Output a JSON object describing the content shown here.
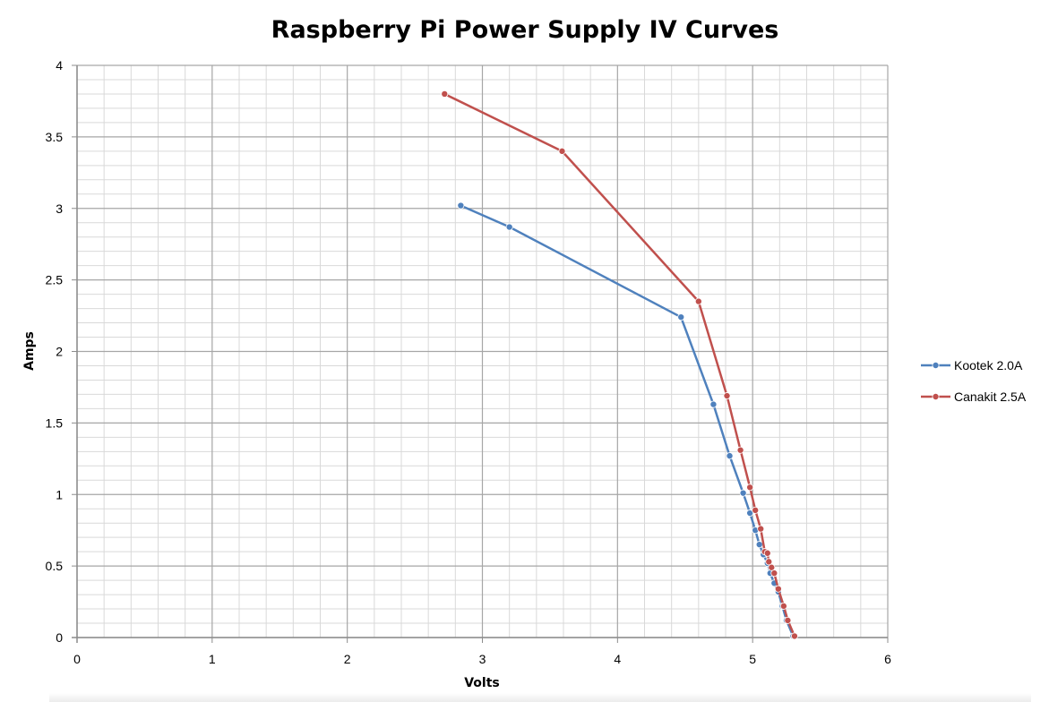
{
  "chart_data": {
    "type": "line",
    "title": "Raspberry Pi Power Supply IV Curves",
    "xlabel": "Volts",
    "ylabel": "Amps",
    "xlim": [
      0,
      6
    ],
    "ylim": [
      0,
      4
    ],
    "x_ticks": [
      "0",
      "1",
      "2",
      "3",
      "4",
      "5",
      "6"
    ],
    "y_ticks": [
      "0",
      "0.5",
      "1",
      "1.5",
      "2",
      "2.5",
      "3",
      "3.5",
      "4"
    ],
    "grid": true,
    "legend_position": "right",
    "series": [
      {
        "name": "Kootek 2.0A",
        "color": "#4f81bd",
        "points": [
          [
            2.84,
            3.02
          ],
          [
            3.2,
            2.87
          ],
          [
            4.47,
            2.24
          ],
          [
            4.71,
            1.63
          ],
          [
            4.83,
            1.27
          ],
          [
            4.93,
            1.01
          ],
          [
            4.98,
            0.87
          ],
          [
            5.02,
            0.75
          ],
          [
            5.05,
            0.65
          ],
          [
            5.08,
            0.58
          ],
          [
            5.11,
            0.52
          ],
          [
            5.13,
            0.45
          ],
          [
            5.16,
            0.38
          ],
          [
            5.19,
            0.32
          ],
          [
            5.22,
            0.22
          ],
          [
            5.25,
            0.12
          ],
          [
            5.3,
            0.01
          ]
        ]
      },
      {
        "name": "Canakit 2.5A",
        "color": "#c0504d",
        "points": [
          [
            2.72,
            3.8
          ],
          [
            3.59,
            3.4
          ],
          [
            4.6,
            2.35
          ],
          [
            4.81,
            1.69
          ],
          [
            4.91,
            1.31
          ],
          [
            4.98,
            1.05
          ],
          [
            5.02,
            0.89
          ],
          [
            5.06,
            0.76
          ],
          [
            5.09,
            0.6
          ],
          [
            5.11,
            0.59
          ],
          [
            5.12,
            0.53
          ],
          [
            5.14,
            0.49
          ],
          [
            5.16,
            0.45
          ],
          [
            5.19,
            0.34
          ],
          [
            5.23,
            0.22
          ],
          [
            5.26,
            0.12
          ],
          [
            5.31,
            0.01
          ]
        ]
      }
    ]
  }
}
